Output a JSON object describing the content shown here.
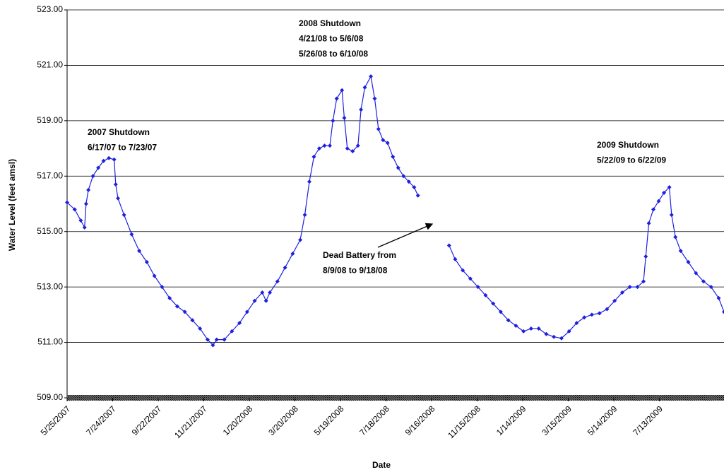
{
  "chart_data": {
    "type": "line",
    "y_label": "Water Level (feet amsl)",
    "x_label": "Date",
    "xlim": [
      "2007-05-25",
      "2009-10-06"
    ],
    "xticks": [
      {
        "value": "2007-05-25",
        "label": "5/25/2007"
      },
      {
        "value": "2007-07-24",
        "label": "7/24/2007"
      },
      {
        "value": "2007-09-22",
        "label": "9/22/2007"
      },
      {
        "value": "2007-11-21",
        "label": "11/21/2007"
      },
      {
        "value": "2008-01-20",
        "label": "1/20/2008"
      },
      {
        "value": "2008-03-20",
        "label": "3/20/2008"
      },
      {
        "value": "2008-05-19",
        "label": "5/19/2008"
      },
      {
        "value": "2008-07-18",
        "label": "7/18/2008"
      },
      {
        "value": "2008-09-16",
        "label": "9/16/2008"
      },
      {
        "value": "2008-11-15",
        "label": "11/15/2008"
      },
      {
        "value": "2009-01-14",
        "label": "1/14/2009"
      },
      {
        "value": "2009-03-15",
        "label": "3/15/2009"
      },
      {
        "value": "2009-05-14",
        "label": "5/14/2009"
      },
      {
        "value": "2009-07-13",
        "label": "7/13/2009"
      }
    ],
    "ylim": [
      509,
      523
    ],
    "yticks": [
      {
        "value": 509,
        "label": "509.00"
      },
      {
        "value": 511,
        "label": "511.00"
      },
      {
        "value": 513,
        "label": "513.00"
      },
      {
        "value": 515,
        "label": "515.00"
      },
      {
        "value": 517,
        "label": "517.00"
      },
      {
        "value": 519,
        "label": "519.00"
      },
      {
        "value": 521,
        "label": "521.00"
      },
      {
        "value": 523,
        "label": "523.00"
      }
    ],
    "grid": true,
    "x": [
      "2007-05-25",
      "2007-06-04",
      "2007-06-12",
      "2007-06-17",
      "2007-06-19",
      "2007-06-22",
      "2007-06-28",
      "2007-07-05",
      "2007-07-12",
      "2007-07-19",
      "2007-07-26",
      "2007-07-28",
      "2007-07-31",
      "2007-08-08",
      "2007-08-18",
      "2007-08-28",
      "2007-09-07",
      "2007-09-17",
      "2007-09-27",
      "2007-10-07",
      "2007-10-17",
      "2007-10-27",
      "2007-11-06",
      "2007-11-16",
      "2007-11-26",
      "2007-12-03",
      "2007-12-08",
      "2007-12-18",
      "2007-12-28",
      "2008-01-07",
      "2008-01-17",
      "2008-01-27",
      "2008-02-06",
      "2008-02-11",
      "2008-02-16",
      "2008-02-26",
      "2008-03-07",
      "2008-03-17",
      "2008-03-27",
      "2008-04-02",
      "2008-04-08",
      "2008-04-14",
      "2008-04-21",
      "2008-04-28",
      "2008-05-05",
      "2008-05-09",
      "2008-05-14",
      "2008-05-21",
      "2008-05-24",
      "2008-05-28",
      "2008-06-04",
      "2008-06-11",
      "2008-06-15",
      "2008-06-20",
      "2008-06-28",
      "2008-07-03",
      "2008-07-08",
      "2008-07-14",
      "2008-07-20",
      "2008-07-27",
      "2008-08-03",
      "2008-08-10",
      "2008-08-17",
      "2008-08-24",
      "2008-08-29",
      "2008-09-20",
      "2008-10-09",
      "2008-10-17",
      "2008-10-27",
      "2008-11-06",
      "2008-11-16",
      "2008-11-26",
      "2008-12-06",
      "2008-12-16",
      "2008-12-26",
      "2009-01-05",
      "2009-01-15",
      "2009-01-25",
      "2009-02-04",
      "2009-02-14",
      "2009-02-24",
      "2009-03-06",
      "2009-03-16",
      "2009-03-26",
      "2009-04-05",
      "2009-04-15",
      "2009-04-25",
      "2009-05-05",
      "2009-05-15",
      "2009-05-25",
      "2009-06-04",
      "2009-06-14",
      "2009-06-22",
      "2009-06-25",
      "2009-06-29",
      "2009-07-05",
      "2009-07-12",
      "2009-07-19",
      "2009-07-26",
      "2009-07-29",
      "2009-08-03",
      "2009-08-10",
      "2009-08-20",
      "2009-08-30",
      "2009-09-09",
      "2009-09-19",
      "2009-09-29",
      "2009-10-06"
    ],
    "series": [
      {
        "color": "#1f1fe0",
        "values": [
          516.05,
          515.8,
          515.4,
          515.15,
          516.0,
          516.5,
          517.0,
          517.3,
          517.55,
          517.65,
          517.6,
          516.7,
          516.2,
          515.6,
          514.9,
          514.3,
          513.9,
          513.4,
          513.0,
          512.6,
          512.3,
          512.1,
          511.8,
          511.5,
          511.1,
          510.9,
          511.1,
          511.1,
          511.4,
          511.7,
          512.1,
          512.5,
          512.8,
          512.5,
          512.8,
          513.2,
          513.7,
          514.2,
          514.7,
          515.6,
          516.8,
          517.7,
          518.0,
          518.1,
          518.1,
          519.0,
          519.8,
          520.1,
          519.1,
          518.0,
          517.9,
          518.1,
          519.4,
          520.2,
          520.6,
          519.8,
          518.7,
          518.3,
          518.2,
          517.7,
          517.3,
          517.0,
          516.8,
          516.6,
          516.3,
          null,
          514.5,
          514.0,
          513.6,
          513.3,
          513.0,
          512.7,
          512.4,
          512.1,
          511.8,
          511.6,
          511.4,
          511.5,
          511.5,
          511.3,
          511.2,
          511.15,
          511.4,
          511.7,
          511.9,
          512.0,
          512.05,
          512.2,
          512.5,
          512.8,
          513.0,
          513.0,
          513.2,
          514.1,
          515.3,
          515.8,
          516.1,
          516.4,
          516.6,
          515.6,
          514.8,
          514.3,
          513.9,
          513.5,
          513.2,
          513.0,
          512.6,
          512.1
        ]
      }
    ],
    "annotations": [
      {
        "color": "#1f1fe0",
        "lines": [
          "2007 Shutdown",
          "6/17/07 to 7/23/07"
        ]
      },
      {
        "color": "#1f1fe0",
        "lines": [
          "2008 Shutdown",
          "4/21/08 to 5/6/08",
          "5/26/08 to 6/10/08"
        ]
      },
      {
        "color": "#1f1fe0",
        "lines": [
          "2009 Shutdown",
          "5/22/09 to 6/22/09"
        ]
      },
      {
        "color": "#000000",
        "lines": [
          "Dead Battery from",
          "8/9/08 to 9/18/08"
        ]
      }
    ]
  }
}
